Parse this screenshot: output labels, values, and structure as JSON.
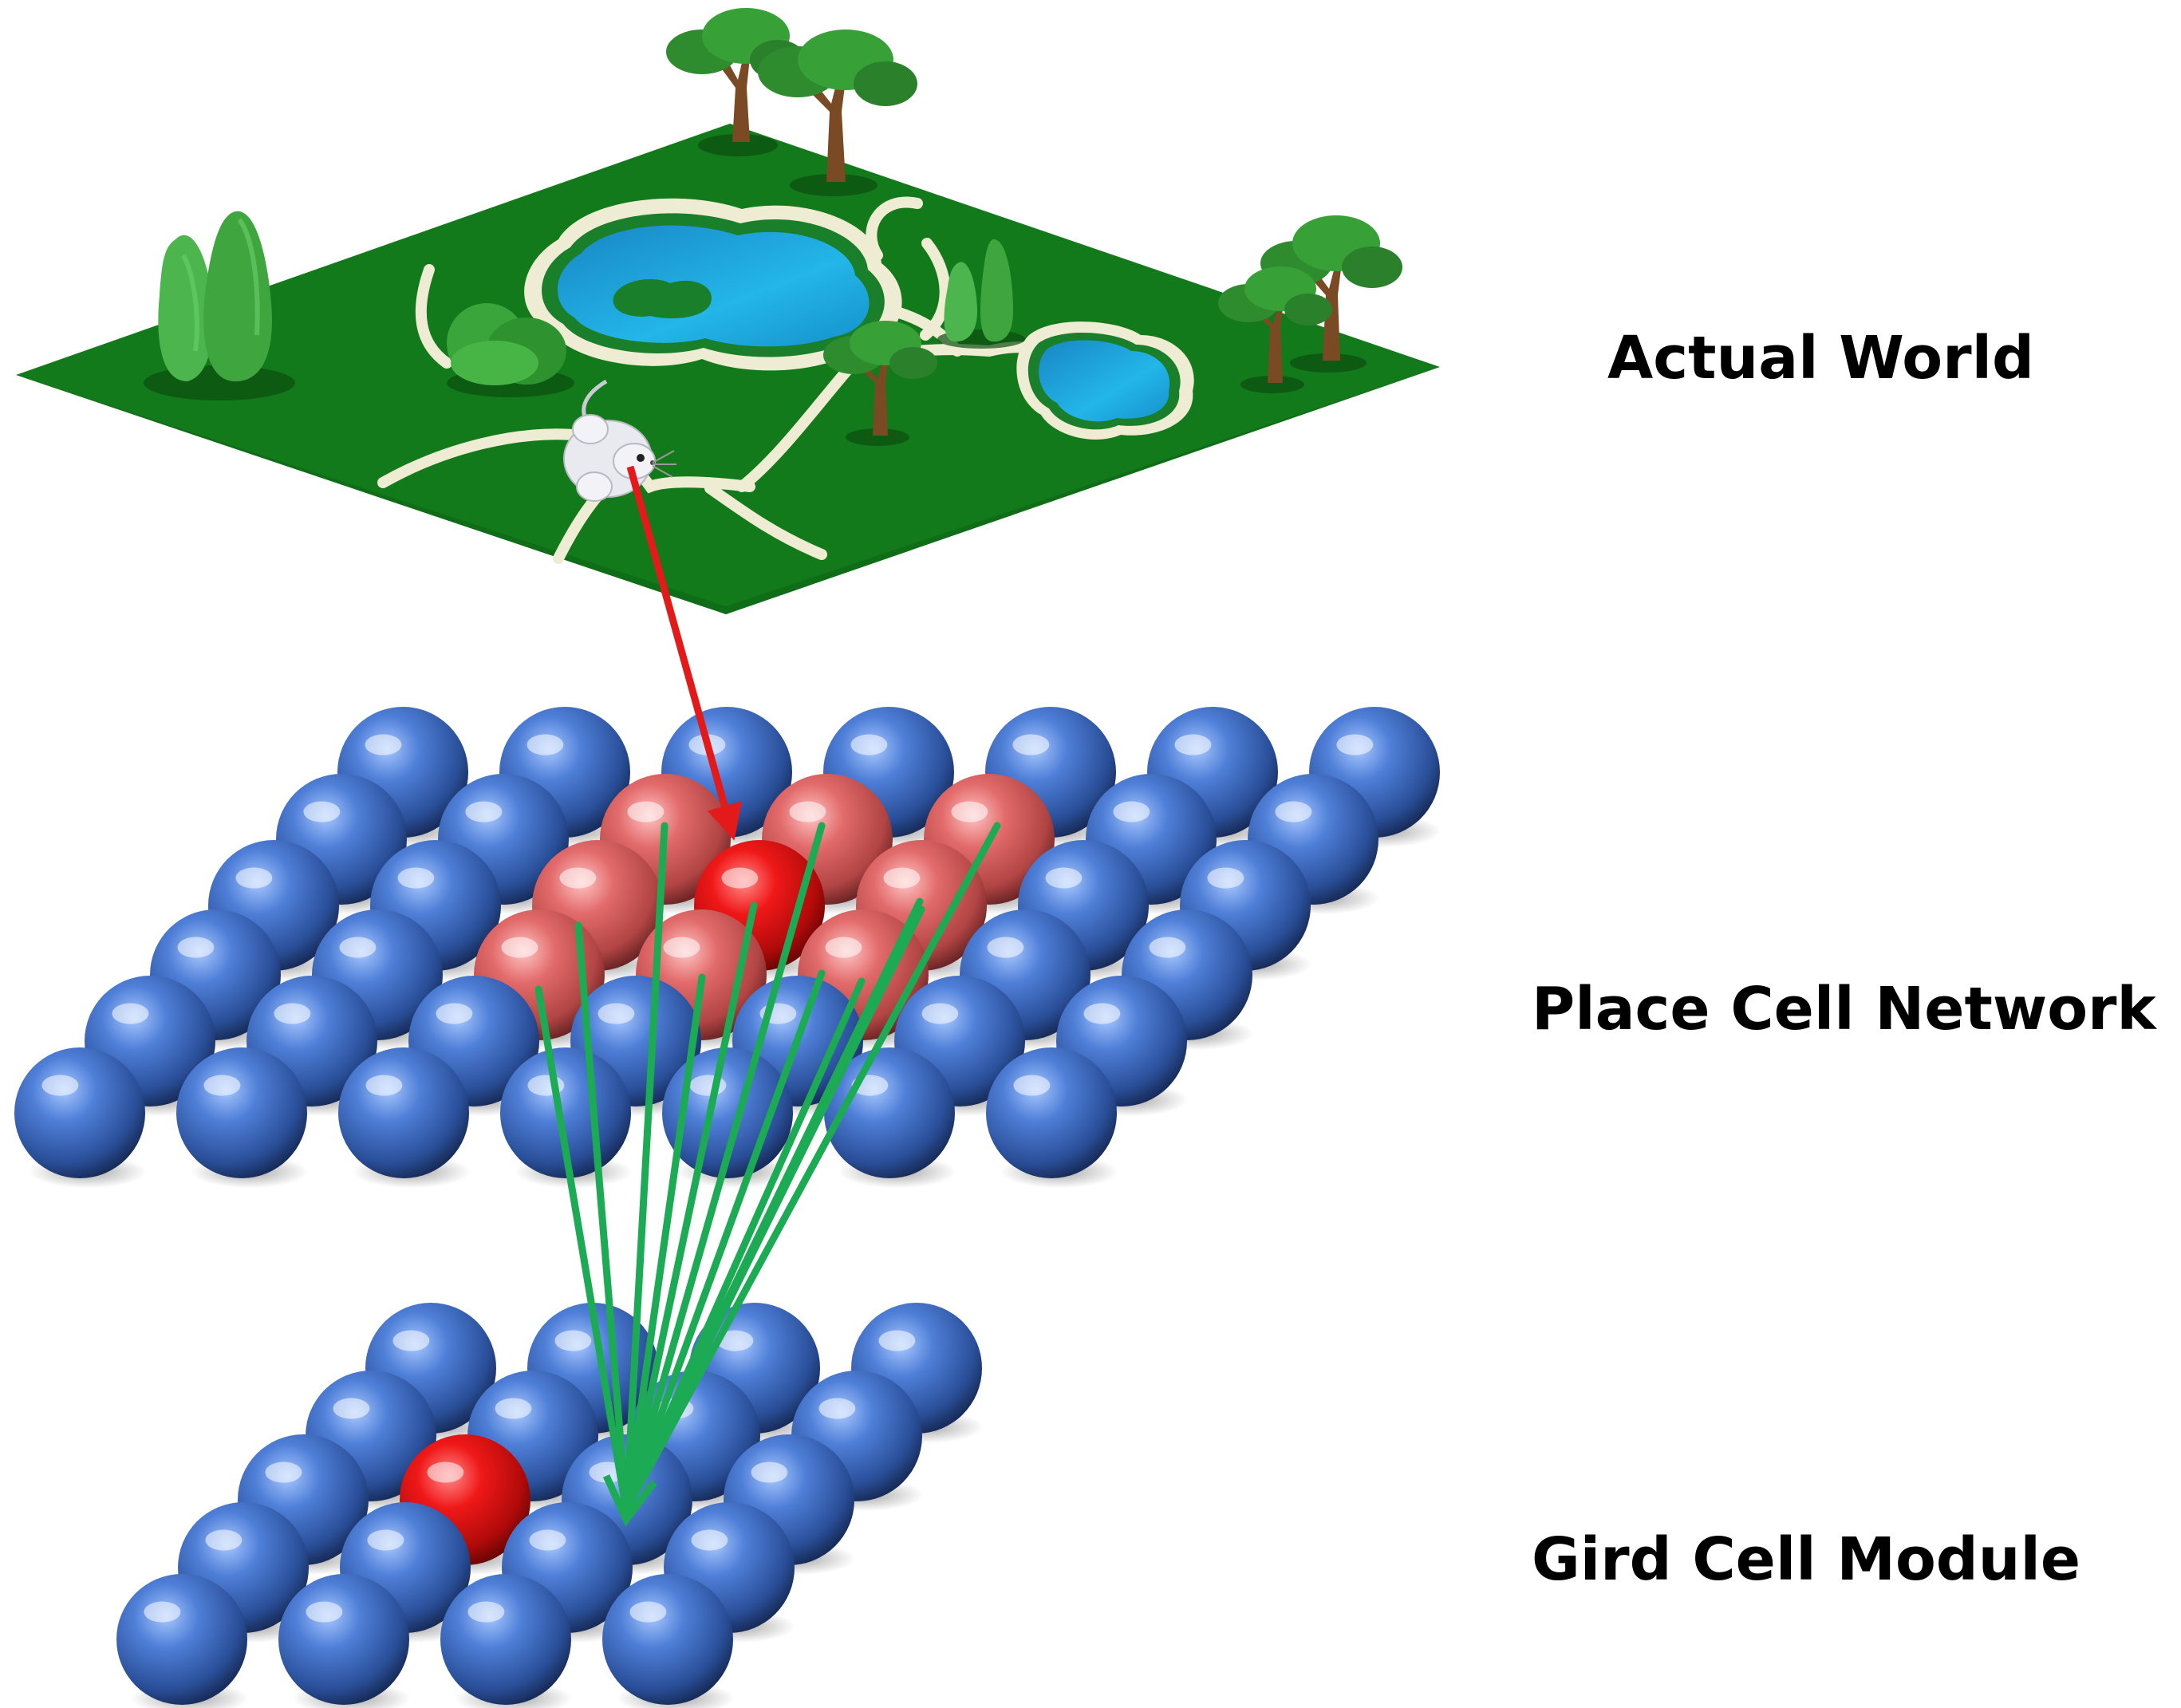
{
  "labels": {
    "actual_world": "Actual World",
    "place_cell_network": "Place Cell Network",
    "grid_cell_module": "Gird Cell Module"
  },
  "colors": {
    "background": "#ffffff",
    "field_green": "#137a1b",
    "path_cream": "#eeecd2",
    "pond_blue": "#1aa7dc",
    "neuron_blue": "#3f6fc7",
    "neuron_active_red": "#ef1a1a",
    "neuron_neighbor_pink": "#e06868",
    "red_arrow": "#e21a1a",
    "green_arrows": "#1daa55",
    "tree_trunk": "#7a4a24",
    "tree_foliage": "#2e8b2e",
    "mouse_white": "#e9eaef"
  },
  "icons": [
    "tree-icon",
    "bush-icon",
    "pond-icon",
    "mouse-icon",
    "neuron-sphere-icon"
  ]
}
